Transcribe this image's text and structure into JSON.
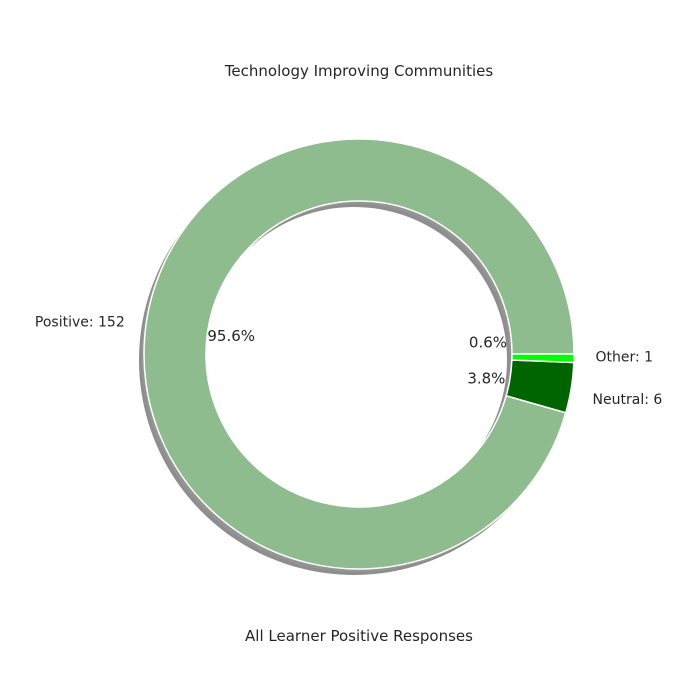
{
  "chart_data": {
    "type": "pie",
    "style": "donut",
    "title": "Technology Improving Communities",
    "xlabel": "All Learner Positive Responses",
    "shadow": true,
    "slices": [
      {
        "label": "Positive: 152",
        "value": 152,
        "pct_label": "95.6%",
        "color": "#8fbc8f"
      },
      {
        "label": "Neutral: 6",
        "value": 6,
        "pct_label": "3.8%",
        "color": "#006400"
      },
      {
        "label": "Other: 1",
        "value": 1,
        "pct_label": "0.6%",
        "color": "#00ff00"
      }
    ]
  }
}
